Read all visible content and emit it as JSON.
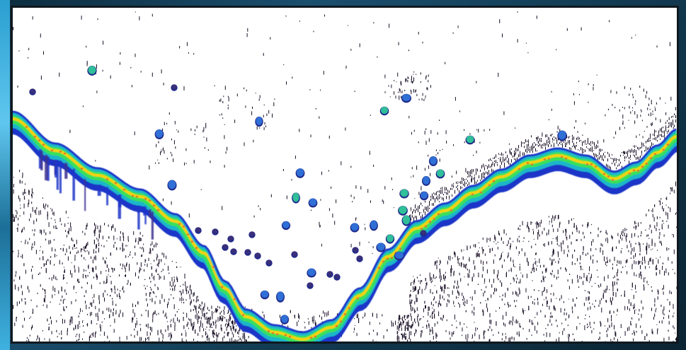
{
  "image": {
    "kind": "sonar-echogram",
    "colors": {
      "background": "#ffffff",
      "frame": "#10191f",
      "bottom_core": "#f5d20a",
      "bottom_mid": "#39e05a",
      "bottom_edge": "#1d35c8",
      "noise": "#1a1026",
      "fish_blue": "#2f6fd6",
      "fish_teal": "#2fbf9a"
    }
  }
}
